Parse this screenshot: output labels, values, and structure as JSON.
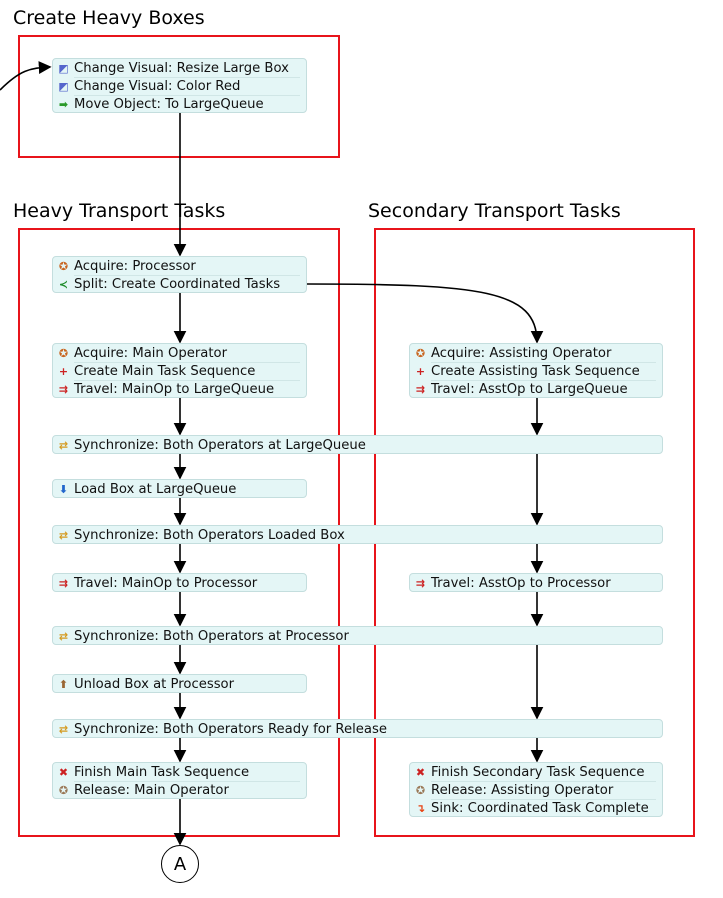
{
  "groups": [
    {
      "title": "Create Heavy Boxes"
    },
    {
      "title": "Heavy Transport Tasks"
    },
    {
      "title": "Secondary Transport Tasks"
    }
  ],
  "colors": {
    "group_border": "#e8141b",
    "block_bg": "#e4f6f6"
  },
  "blocks": [
    {
      "rows": [
        {
          "icon": "change-visual-icon",
          "label": "Change Visual: Resize Large Box"
        },
        {
          "icon": "change-visual-icon",
          "label": "Change Visual: Color Red"
        },
        {
          "icon": "move-object-icon",
          "label": "Move Object: To LargeQueue"
        }
      ]
    },
    {
      "rows": [
        {
          "icon": "acquire-icon",
          "label": "Acquire: Processor"
        },
        {
          "icon": "split-icon",
          "label": "Split: Create Coordinated Tasks"
        }
      ]
    },
    {
      "rows": [
        {
          "icon": "acquire-icon",
          "label": "Acquire: Main Operator"
        },
        {
          "icon": "create-task-sequence-icon",
          "label": "Create Main Task Sequence"
        },
        {
          "icon": "travel-icon",
          "label": "Travel: MainOp to LargeQueue"
        }
      ]
    },
    {
      "rows": [
        {
          "icon": "acquire-icon",
          "label": "Acquire: Assisting Operator"
        },
        {
          "icon": "create-task-sequence-icon",
          "label": "Create Assisting Task Sequence"
        },
        {
          "icon": "travel-icon",
          "label": "Travel: AsstOp to LargeQueue"
        }
      ]
    },
    {
      "rows": [
        {
          "icon": "synchronize-icon",
          "label": "Synchronize: Both Operators at LargeQueue"
        }
      ]
    },
    {
      "rows": [
        {
          "icon": "load-icon",
          "label": "Load Box at LargeQueue"
        }
      ]
    },
    {
      "rows": [
        {
          "icon": "synchronize-icon",
          "label": "Synchronize: Both Operators Loaded Box"
        }
      ]
    },
    {
      "rows": [
        {
          "icon": "travel-icon",
          "label": "Travel: MainOp to Processor"
        }
      ]
    },
    {
      "rows": [
        {
          "icon": "travel-icon",
          "label": "Travel: AsstOp to Processor"
        }
      ]
    },
    {
      "rows": [
        {
          "icon": "synchronize-icon",
          "label": "Synchronize: Both Operators at Processor"
        }
      ]
    },
    {
      "rows": [
        {
          "icon": "unload-icon",
          "label": "Unload Box at Processor"
        }
      ]
    },
    {
      "rows": [
        {
          "icon": "synchronize-icon",
          "label": "Synchronize: Both Operators Ready for Release"
        }
      ]
    },
    {
      "rows": [
        {
          "icon": "finish-task-sequence-icon",
          "label": "Finish Main Task Sequence"
        },
        {
          "icon": "release-icon",
          "label": "Release: Main Operator"
        }
      ]
    },
    {
      "rows": [
        {
          "icon": "finish-task-sequence-icon",
          "label": "Finish Secondary Task Sequence"
        },
        {
          "icon": "release-icon",
          "label": "Release: Assisting Operator"
        },
        {
          "icon": "sink-icon",
          "label": "Sink: Coordinated Task Complete"
        }
      ]
    }
  ],
  "connector": {
    "label": "A"
  }
}
